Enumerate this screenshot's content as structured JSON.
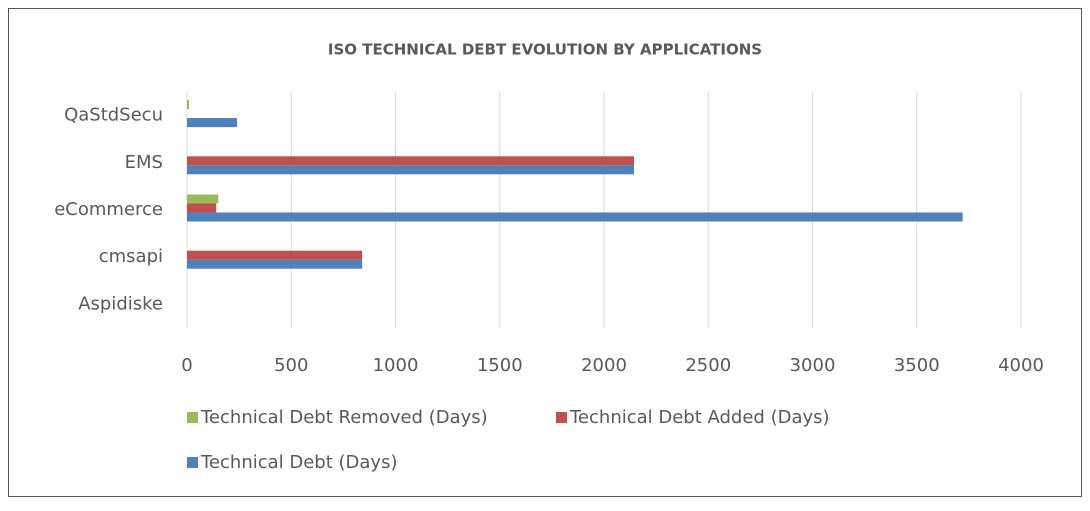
{
  "chart_data": {
    "type": "hbar",
    "title": "ISO TECHNICAL DEBT EVOLUTION BY APPLICATIONS",
    "categories": [
      "QaStdSecu",
      "EMS",
      "eCommerce",
      "cmsapi",
      "Aspidiske"
    ],
    "series": [
      {
        "name": "Technical Debt Removed (Days)",
        "color": "#9bbb59",
        "values": [
          10,
          0,
          150,
          0,
          0
        ]
      },
      {
        "name": "Technical Debt Added (Days)",
        "color": "#c0504d",
        "values": [
          0,
          2144,
          140,
          840,
          0
        ]
      },
      {
        "name": "Technical Debt (Days)",
        "color": "#4f81bd",
        "values": [
          240,
          2144,
          3720,
          840,
          0
        ]
      }
    ],
    "xlim": [
      0,
      4000
    ],
    "xticks": [
      0,
      500,
      1000,
      1500,
      2000,
      2500,
      3000,
      3500,
      4000
    ],
    "grid": true,
    "legend": "bottom"
  }
}
